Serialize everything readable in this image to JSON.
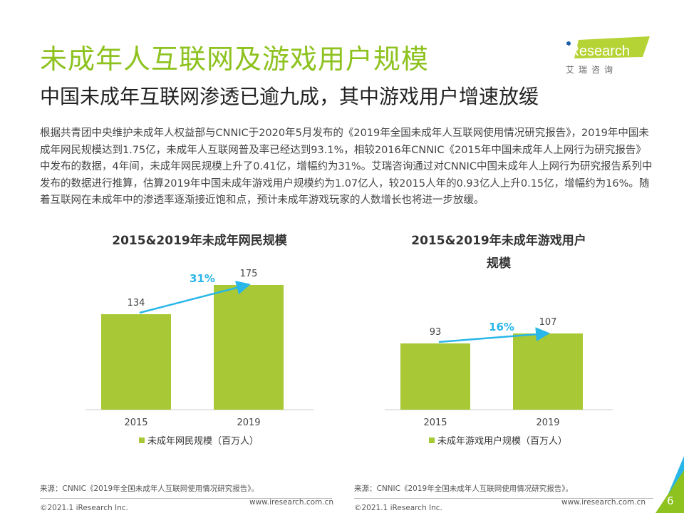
{
  "header": {
    "title": "未成年人互联网及游戏用户规模",
    "subtitle": "中国未成年互联网渗透已逾九成，其中游戏用户增速放缓"
  },
  "logo": {
    "brand": "iResearch",
    "cn": "艾 瑞 咨 询"
  },
  "body_text": "根据共青团中央维护未成年人权益部与CNNIC于2020年5月发布的《2019年全国未成年人互联网使用情况研究报告》，2019年中国未成年网民规模达到1.75亿，未成年人互联网普及率已经达到93.1%，相较2016年CNNIC《2015年中国未成年人上网行为研究报告》中发布的数据，4年间，未成年网民规模上升了0.41亿，增幅约为31%。艾瑞咨询通过对CNNIC中国未成年人上网行为研究报告系列中发布的数据进行推算，估算2019年中国未成年游戏用户规模约为1.07亿人，较2015人年的0.93亿人上升0.15亿，增幅约为16%。随着互联网在未成年中的渗透率逐渐接近饱和点，预计未成年游戏玩家的人数增长也将进一步放缓。",
  "chart_data": [
    {
      "type": "bar",
      "title": "2015&2019年未成年网民规模",
      "categories": [
        "2015",
        "2019"
      ],
      "values": [
        134,
        175
      ],
      "value_labels": [
        "134",
        "175"
      ],
      "growth_label": "31%",
      "legend": "未成年网民规模（百万人）",
      "color": "#a8c935"
    },
    {
      "type": "bar",
      "title": "2015&2019年未成年游戏用户规模",
      "title_lines": [
        "2015&2019年未成年游戏用户",
        "规模"
      ],
      "categories": [
        "2015",
        "2019"
      ],
      "values": [
        93,
        107
      ],
      "value_labels": [
        "93",
        "107"
      ],
      "growth_label": "16%",
      "legend": "未成年游戏用户规模（百万人）",
      "color": "#a8c935"
    }
  ],
  "footer": {
    "source": "来源：CNNIC《2019年全国未成年人互联网使用情况研究报告》。",
    "copyright": "©2021.1 iResearch Inc.",
    "url": "www.iresearch.com.cn",
    "page": "6"
  },
  "colors": {
    "accent": "#8dc21f",
    "arrow": "#29b6e8",
    "bar": "#a8c935"
  }
}
